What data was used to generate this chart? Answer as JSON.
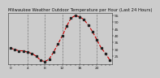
{
  "title": "Milwaukee Weather Outdoor Temperature per Hour (Last 24 Hours)",
  "hours": [
    0,
    1,
    2,
    3,
    4,
    5,
    6,
    7,
    8,
    9,
    10,
    11,
    12,
    13,
    14,
    15,
    16,
    17,
    18,
    19,
    20,
    21,
    22,
    23
  ],
  "temps": [
    31,
    30,
    29,
    29,
    28,
    27,
    25,
    22,
    21,
    23,
    28,
    34,
    40,
    47,
    53,
    55,
    54,
    52,
    48,
    43,
    37,
    31,
    27,
    22
  ],
  "line_color": "#cc0000",
  "marker_color": "#222222",
  "bg_color": "#cccccc",
  "plot_bg": "#cccccc",
  "grid_color": "#777777",
  "ylim": [
    19,
    57
  ],
  "yticks": [
    25,
    30,
    35,
    40,
    45,
    50,
    55
  ],
  "grid_hours": [
    4,
    8,
    12,
    16,
    20
  ],
  "title_fontsize": 3.8,
  "tick_fontsize": 3.2
}
